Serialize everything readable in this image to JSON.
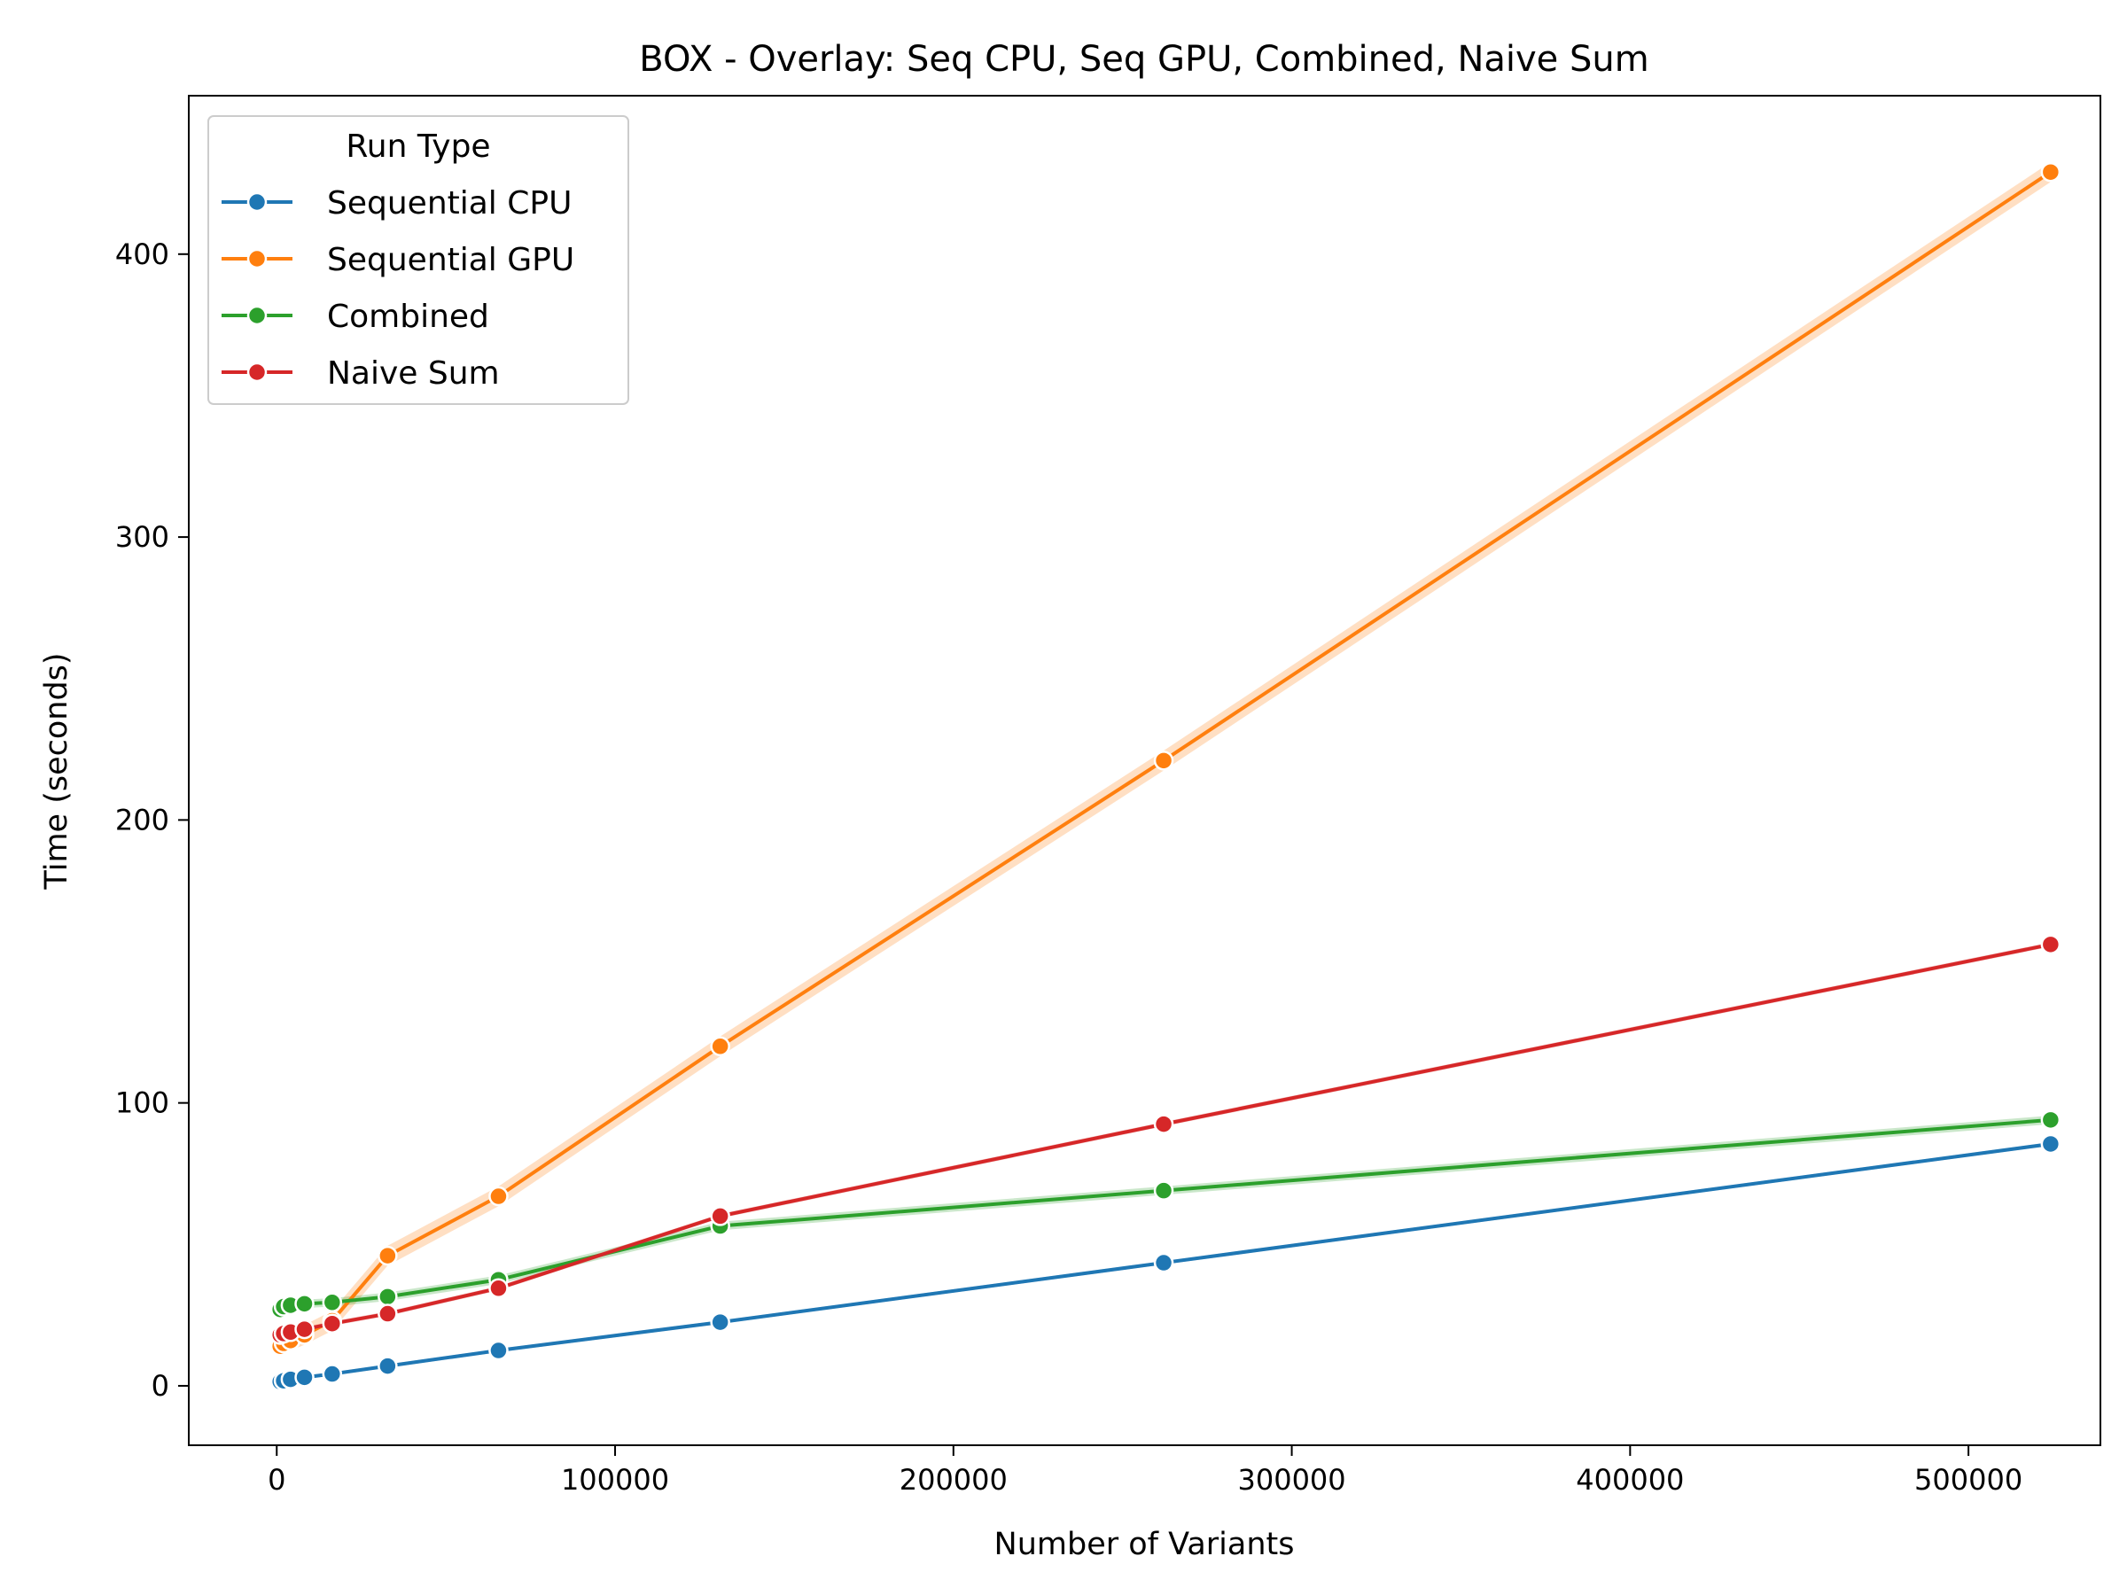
{
  "chart_data": {
    "type": "line",
    "title": "BOX - Overlay: Seq CPU, Seq GPU, Combined, Naive Sum",
    "xlabel": "Number of Variants",
    "ylabel": "Time (seconds)",
    "xlim": [
      -26000,
      539000
    ],
    "ylim": [
      -21,
      456
    ],
    "xticks": [
      0,
      100000,
      200000,
      300000,
      400000,
      500000
    ],
    "xtick_labels": [
      "0",
      "100000",
      "200000",
      "300000",
      "400000",
      "500000"
    ],
    "yticks": [
      0,
      100,
      200,
      300,
      400
    ],
    "ytick_labels": [
      "0",
      "100",
      "200",
      "300",
      "400"
    ],
    "grid": false,
    "legend": {
      "title": "Run Type",
      "position": "top-left"
    },
    "x": [
      1024,
      2048,
      4096,
      8192,
      16384,
      32768,
      65536,
      131072,
      262144,
      524288
    ],
    "series": [
      {
        "name": "Sequential CPU",
        "color": "#1f77b4",
        "values": [
          1.5,
          1.8,
          2.3,
          3.0,
          4.2,
          7.0,
          12.5,
          22.5,
          43.5,
          85.5
        ],
        "band": 0.6
      },
      {
        "name": "Sequential GPU",
        "color": "#ff7f0e",
        "values": [
          14,
          15,
          16,
          18,
          23,
          46,
          67,
          120,
          221,
          429
        ],
        "band": 3.5
      },
      {
        "name": "Combined",
        "color": "#2ca02c",
        "values": [
          27,
          28,
          28.5,
          29,
          29.5,
          31.5,
          37.5,
          56.5,
          69,
          94
        ],
        "band": 1.5
      },
      {
        "name": "Naive Sum",
        "color": "#d62728",
        "values": [
          18,
          18.5,
          19,
          20,
          22,
          25.5,
          34.5,
          60,
          92.5,
          156
        ],
        "band": 0.8
      }
    ]
  }
}
